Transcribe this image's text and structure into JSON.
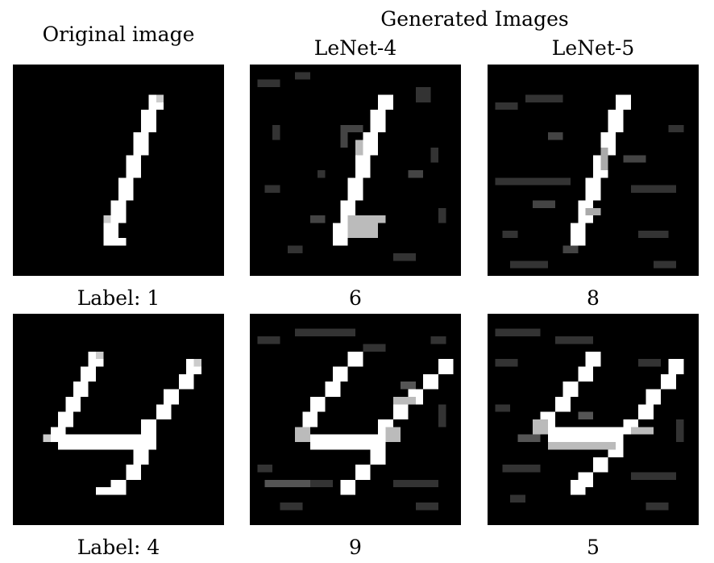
{
  "headers": {
    "original": "Original image",
    "generated": "Generated Images",
    "lenet4": "LeNet-4",
    "lenet5": "LeNet-5"
  },
  "rows": [
    {
      "original_label": "Label: 1",
      "lenet4_pred": "6",
      "lenet5_pred": "8"
    },
    {
      "original_label": "Label: 4",
      "lenet4_pred": "9",
      "lenet5_pred": "5"
    }
  ]
}
